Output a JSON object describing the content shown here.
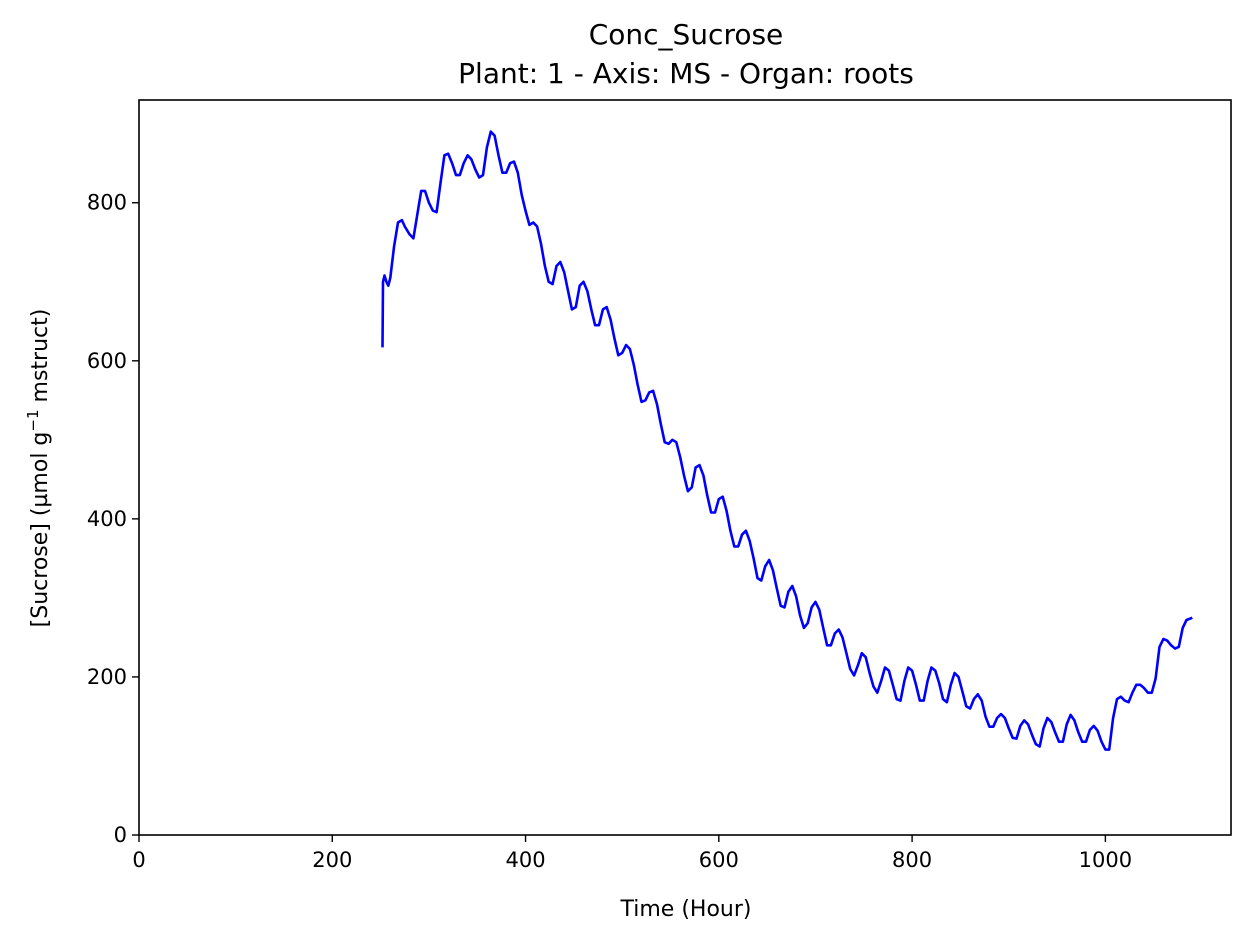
{
  "chart_data": {
    "type": "line",
    "title": "Conc_Sucrose",
    "subtitle": "Plant: 1 - Axis: MS - Organ: roots",
    "xlabel": "Time (Hour)",
    "ylabel_main": "[Sucrose] (µmol g",
    "ylabel_sup": "−1",
    "ylabel_tail": " mstruct)",
    "xlim": [
      0,
      1130
    ],
    "ylim": [
      0,
      930
    ],
    "xticks": [
      0,
      200,
      400,
      600,
      800,
      1000
    ],
    "yticks": [
      0,
      200,
      400,
      600,
      800
    ],
    "xtick_labels": [
      "0",
      "200",
      "400",
      "600",
      "800",
      "1000"
    ],
    "ytick_labels": [
      "0",
      "200",
      "400",
      "600",
      "800"
    ],
    "grid": false,
    "series": [
      {
        "color": "#0000ff",
        "x": [
          252,
          252.5,
          254,
          256,
          258,
          260,
          264,
          268,
          272,
          275,
          280,
          284,
          288,
          292,
          296,
          300,
          304,
          308,
          312,
          316,
          320,
          324,
          328,
          332,
          336,
          340,
          344,
          348,
          352,
          356,
          360,
          364,
          368,
          372,
          376,
          380,
          384,
          388,
          392,
          396,
          400,
          404,
          408,
          412,
          416,
          420,
          424,
          428,
          432,
          436,
          440,
          444,
          448,
          452,
          456,
          460,
          464,
          468,
          472,
          476,
          480,
          484,
          488,
          492,
          496,
          500,
          504,
          508,
          512,
          516,
          520,
          524,
          528,
          532,
          536,
          540,
          544,
          548,
          552,
          556,
          560,
          564,
          568,
          572,
          576,
          580,
          584,
          588,
          592,
          596,
          600,
          604,
          608,
          612,
          616,
          620,
          624,
          628,
          632,
          636,
          640,
          644,
          648,
          652,
          656,
          660,
          664,
          668,
          672,
          676,
          680,
          684,
          688,
          692,
          696,
          700,
          704,
          708,
          712,
          716,
          720,
          724,
          728,
          732,
          736,
          740,
          744,
          748,
          752,
          756,
          760,
          764,
          768,
          772,
          776,
          780,
          784,
          788,
          792,
          796,
          800,
          804,
          808,
          812,
          816,
          820,
          824,
          828,
          832,
          836,
          840,
          844,
          848,
          852,
          856,
          860,
          864,
          868,
          872,
          876,
          880,
          884,
          888,
          892,
          896,
          900,
          904,
          908,
          912,
          916,
          920,
          924,
          928,
          932,
          936,
          940,
          944,
          948,
          952,
          956,
          960,
          964,
          968,
          972,
          976,
          980,
          984,
          988,
          992,
          996,
          1000,
          1004,
          1008,
          1012,
          1016,
          1020,
          1024,
          1028,
          1032,
          1036,
          1040,
          1044,
          1048,
          1052,
          1056,
          1060,
          1064,
          1068,
          1072,
          1076,
          1080,
          1084,
          1088,
          1090
        ],
        "y": [
          617,
          700,
          708,
          700,
          695,
          705,
          745,
          775,
          778,
          770,
          760,
          755,
          785,
          815,
          815,
          800,
          790,
          788,
          825,
          860,
          862,
          850,
          835,
          835,
          850,
          860,
          855,
          842,
          832,
          835,
          870,
          890,
          885,
          860,
          838,
          838,
          850,
          852,
          838,
          810,
          790,
          772,
          775,
          770,
          748,
          720,
          700,
          697,
          720,
          725,
          712,
          688,
          665,
          668,
          695,
          700,
          688,
          665,
          645,
          645,
          665,
          668,
          652,
          628,
          607,
          610,
          620,
          615,
          595,
          570,
          548,
          550,
          560,
          562,
          545,
          520,
          497,
          495,
          500,
          497,
          478,
          455,
          435,
          440,
          465,
          468,
          455,
          430,
          408,
          408,
          425,
          428,
          410,
          385,
          365,
          365,
          380,
          385,
          372,
          350,
          325,
          322,
          340,
          348,
          335,
          312,
          290,
          288,
          308,
          315,
          302,
          278,
          262,
          268,
          288,
          295,
          285,
          262,
          240,
          240,
          255,
          260,
          250,
          230,
          210,
          202,
          215,
          230,
          225,
          205,
          188,
          180,
          195,
          212,
          208,
          190,
          172,
          170,
          195,
          212,
          208,
          190,
          170,
          170,
          195,
          212,
          208,
          192,
          172,
          168,
          190,
          205,
          200,
          182,
          163,
          160,
          172,
          178,
          170,
          150,
          137,
          137,
          148,
          153,
          148,
          135,
          123,
          122,
          138,
          145,
          140,
          127,
          115,
          112,
          135,
          148,
          143,
          130,
          118,
          118,
          140,
          152,
          145,
          130,
          118,
          118,
          133,
          138,
          132,
          118,
          108,
          108,
          148,
          172,
          175,
          170,
          168,
          180,
          190,
          190,
          186,
          180,
          180,
          198,
          238,
          248,
          246,
          240,
          236,
          238,
          262,
          272,
          274,
          275
        ]
      }
    ]
  }
}
